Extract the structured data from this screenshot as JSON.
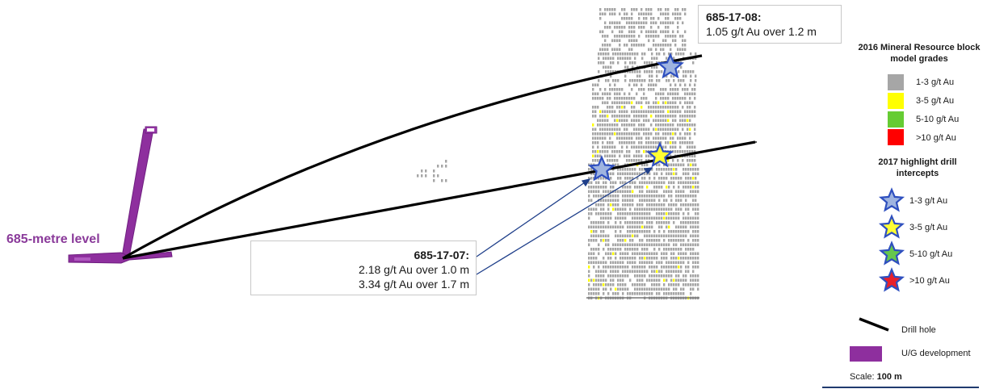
{
  "level_label": "685-metre level",
  "callouts": {
    "hole_08": {
      "title": "685-17-08:",
      "lines": [
        "1.05 g/t Au over 1.2 m"
      ]
    },
    "hole_07": {
      "title": "685-17-07:",
      "lines": [
        "2.18 g/t Au over 1.0 m",
        "3.34 g/t Au over 1.7 m"
      ]
    }
  },
  "legend": {
    "block_title": "2016 Mineral Resource block model grades",
    "block_grades": [
      {
        "label": "1-3  g/t Au",
        "color": "#a6a6a6"
      },
      {
        "label": "3-5  g/t Au",
        "color": "#ffff00"
      },
      {
        "label": "5-10  g/t Au",
        "color": "#66cc33"
      },
      {
        "label": ">10  g/t Au",
        "color": "#ff0000"
      }
    ],
    "intercept_title": "2017 highlight drill intercepts",
    "intercepts": [
      {
        "label": "1-3  g/t Au",
        "fill": "#9fb4e0"
      },
      {
        "label": "3-5  g/t Au",
        "fill": "#ffff33"
      },
      {
        "label": "5-10  g/t Au",
        "fill": "#66c74d"
      },
      {
        "label": ">10  g/t Au",
        "fill": "#e8202a"
      }
    ],
    "drill_hole_label": "Drill hole",
    "development_label": "U/G development",
    "development_color": "#8e2f9e",
    "scale_prefix": "Scale: ",
    "scale_value": "100 m"
  },
  "colors": {
    "star_outline": "#2e4fbf",
    "drill_hole": "#000000",
    "callout_arrow": "#1f3f8a"
  }
}
